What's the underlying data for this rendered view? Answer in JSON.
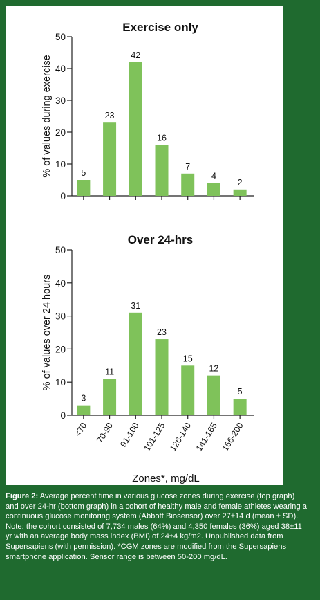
{
  "colors": {
    "background": "#1f6a2f",
    "panel": "#ffffff",
    "bar": "#7fc25a",
    "axis": "#222222",
    "caption_text": "#ffffff"
  },
  "chart_data": [
    {
      "type": "bar",
      "title": "Exercise only",
      "ylabel": "% of values during exercise",
      "xlabel": "",
      "categories": [
        "<70",
        "70-90",
        "91-100",
        "101-125",
        "126-140",
        "141-165",
        "166-200"
      ],
      "values": [
        5,
        23,
        42,
        16,
        7,
        4,
        2
      ],
      "ylim": [
        0,
        50
      ],
      "yticks": [
        0,
        10,
        20,
        30,
        40,
        50
      ],
      "show_category_labels": false
    },
    {
      "type": "bar",
      "title": "Over 24-hrs",
      "ylabel": "% of values over 24 hours",
      "xlabel": "Zones*, mg/dL",
      "categories": [
        "<70",
        "70-90",
        "91-100",
        "101-125",
        "126-140",
        "141-165",
        "166-200"
      ],
      "values": [
        3,
        11,
        31,
        23,
        15,
        12,
        5
      ],
      "ylim": [
        0,
        50
      ],
      "yticks": [
        0,
        10,
        20,
        30,
        40,
        50
      ],
      "show_category_labels": true
    }
  ],
  "caption": {
    "label": "Figure 2:",
    "text": " Average percent time in various glucose zones during exercise (top graph) and over 24-hr (bottom graph) in a cohort of healthy male and female athletes wearing a continuous glucose monitoring system (Abbott Biosensor) over 27±14 d (mean ± SD). Note: the cohort consisted of 7,734 males (64%) and 4,350 females (36%) aged 38±11 yr with an average body mass index (BMI) of 24±4 kg/m2. Unpublished data from Supersapiens (with permission). *CGM zones are modified from the Supersapiens smartphone application. Sensor range is between 50-200 mg/dL."
  }
}
